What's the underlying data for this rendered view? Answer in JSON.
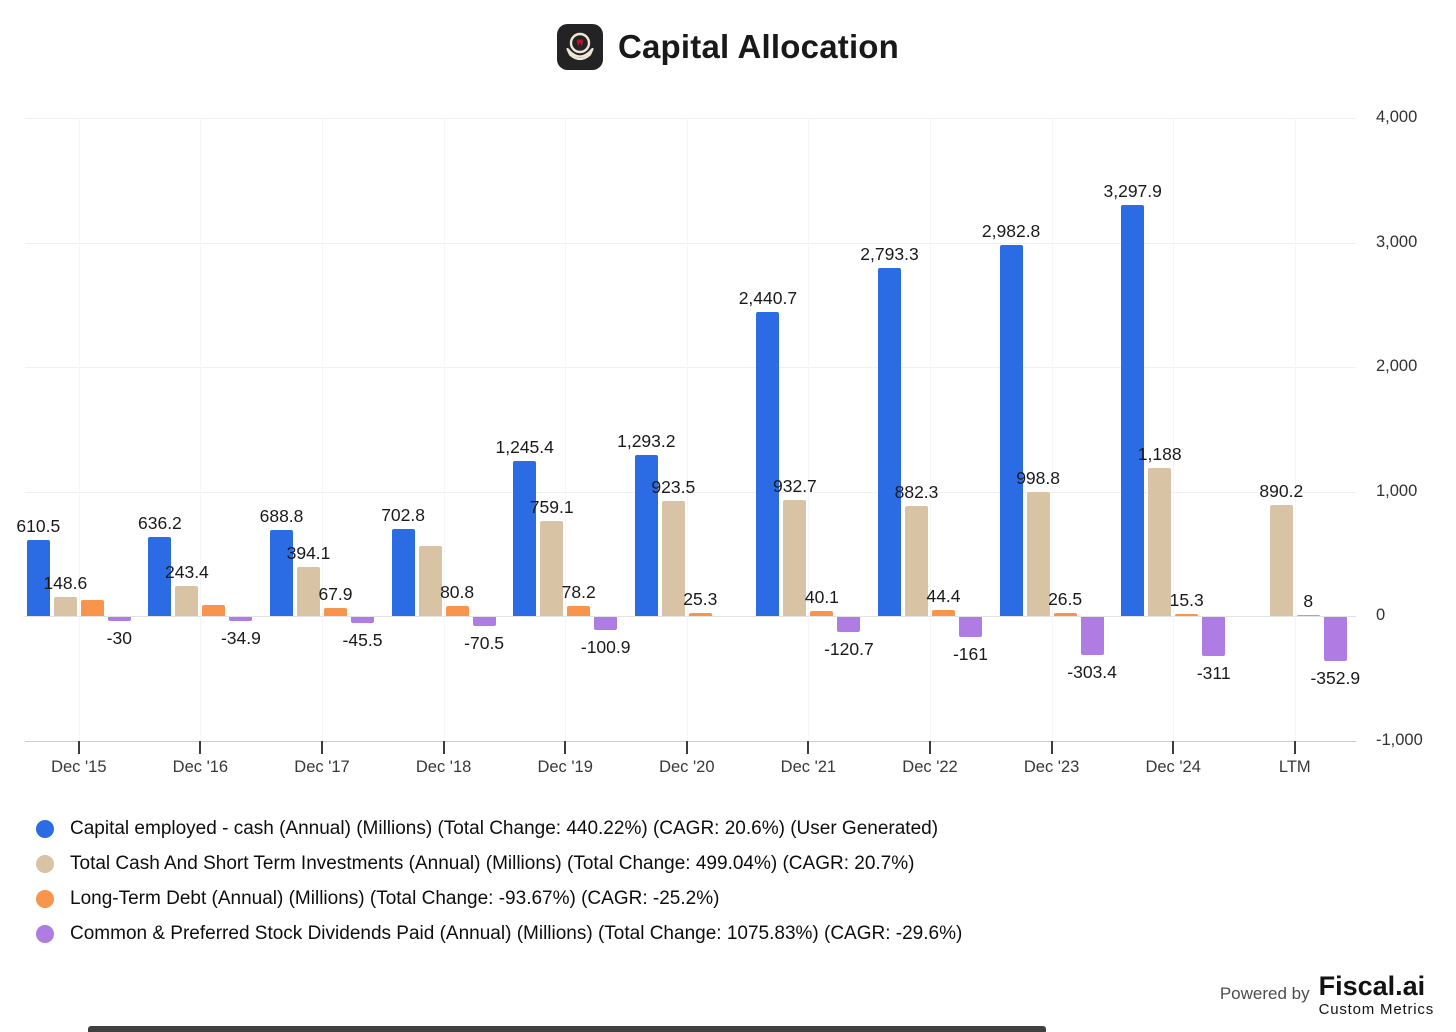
{
  "header": {
    "title": "Capital Allocation",
    "logo": "moncler-app-icon"
  },
  "chart_data": {
    "type": "bar",
    "title": "Capital Allocation",
    "xlabel": "",
    "ylabel": "",
    "ylim": [
      -1000,
      4000
    ],
    "y_grid_step": 1000,
    "grid": true,
    "legend_position": "bottom",
    "y_ticks": [
      "4,000",
      "3,000",
      "2,000",
      "1,000",
      "0",
      "-1,000"
    ],
    "categories": [
      "Dec '15",
      "Dec '16",
      "Dec '17",
      "Dec '18",
      "Dec '19",
      "Dec '20",
      "Dec '21",
      "Dec '22",
      "Dec '23",
      "Dec '24",
      "LTM"
    ],
    "series": [
      {
        "name": "Capital employed - cash (Annual) (Millions) (Total Change: 440.22%) (CAGR: 20.6%) (User Generated)",
        "color": "#2b6ce5",
        "values": [
          610.5,
          636.2,
          688.8,
          702.8,
          1245.4,
          1293.2,
          2440.7,
          2793.3,
          2982.8,
          3297.9,
          null
        ],
        "labels": [
          "610.5",
          "636.2",
          "688.8",
          "702.8",
          "1,245.4",
          "1,293.2",
          "2,440.7",
          "2,793.3",
          "2,982.8",
          "3,297.9",
          null
        ]
      },
      {
        "name": "Total Cash And Short Term Investments (Annual) (Millions) (Total Change: 499.04%) (CAGR: 20.7%)",
        "color": "#d8c3a5",
        "values": [
          148.6,
          243.4,
          394.1,
          560,
          759.1,
          923.5,
          932.7,
          882.3,
          998.8,
          1188,
          890.2
        ],
        "labels": [
          "148.6",
          "243.4",
          "394.1",
          null,
          "759.1",
          "923.5",
          "932.7",
          "882.3",
          "998.8",
          "1,188",
          "890.2"
        ]
      },
      {
        "name": "Long-Term Debt (Annual) (Millions) (Total Change: -93.67%) (CAGR: -25.2%)",
        "color": "#f8944b",
        "values": [
          126,
          85,
          67.9,
          80.8,
          78.2,
          25.3,
          40.1,
          44.4,
          26.5,
          15.3,
          8
        ],
        "labels": [
          null,
          null,
          "67.9",
          "80.8",
          "78.2",
          "25.3",
          "40.1",
          "44.4",
          "26.5",
          "15.3",
          "8"
        ]
      },
      {
        "name": "Common & Preferred Stock Dividends Paid (Annual) (Millions) (Total Change: 1075.83%) (CAGR: -29.6%)",
        "color": "#ae7ce3",
        "values": [
          -30,
          -34.9,
          -45.5,
          -70.5,
          -100.9,
          null,
          -120.7,
          -161,
          -303.4,
          -311,
          -352.9
        ],
        "labels": [
          "-30",
          "-34.9",
          "-45.5",
          "-70.5",
          "-100.9",
          null,
          "-120.7",
          "-161",
          "-303.4",
          "-311",
          "-352.9"
        ]
      }
    ]
  },
  "footer": {
    "powered_by": "Powered by",
    "brand": "Fiscal.ai",
    "sub": "Custom Metrics"
  }
}
